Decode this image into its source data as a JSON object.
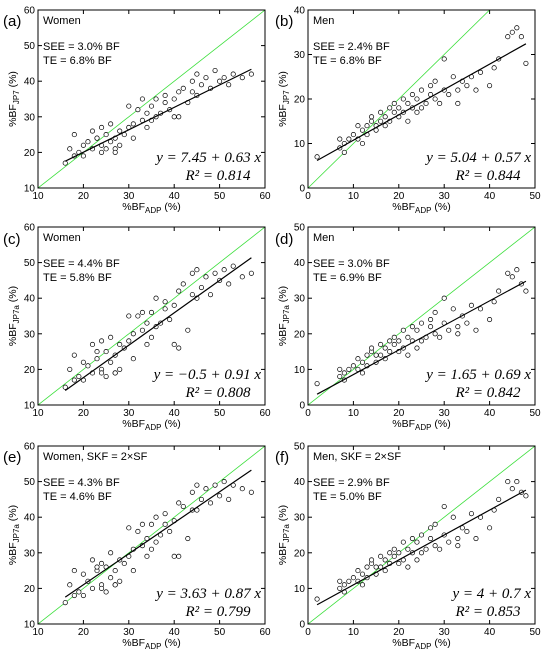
{
  "colors": {
    "identity_line": "#3adf3a",
    "fit_line": "#000000",
    "points": "#000000"
  },
  "chart_data": [
    {
      "panel": "(a)",
      "title": "Women",
      "type": "scatter",
      "xlabel_main": "%BF",
      "xlabel_sub": "ADP",
      "xlabel_unit": " (%)",
      "ylabel_main": "%BF",
      "ylabel_sub": "JP7",
      "ylabel_unit": " (%)",
      "xlim": [
        10,
        60
      ],
      "ylim": [
        10,
        60
      ],
      "xticks": [
        "10",
        "20",
        "30",
        "40",
        "50",
        "60"
      ],
      "yticks": [
        "10",
        "20",
        "30",
        "40",
        "50",
        "60"
      ],
      "stat_see": "SEE = 3.0% BF",
      "stat_te": "TE = 6.8% BF",
      "eq_text": "y = 7.45 + 0.63 x",
      "r2_text": "R² = 0.814",
      "intercept": 7.45,
      "slope": 0.63,
      "x": [
        16,
        17,
        18,
        18,
        19,
        20,
        21,
        22,
        22,
        23,
        24,
        24,
        25,
        25,
        26,
        26,
        27,
        27,
        28,
        28,
        29,
        30,
        31,
        31,
        32,
        33,
        34,
        34,
        35,
        35,
        36,
        36,
        37,
        38,
        38,
        39,
        40,
        41,
        41,
        42,
        43,
        44,
        45,
        45,
        46,
        47,
        48,
        49,
        50,
        51,
        52,
        53,
        55,
        57,
        20,
        24,
        30,
        33,
        40,
        44,
        27,
        23
      ],
      "y": [
        17,
        21,
        19,
        25,
        20,
        22,
        23,
        21,
        26,
        24,
        22,
        27,
        21,
        25,
        23,
        28,
        24,
        21,
        26,
        22,
        25,
        27,
        28,
        24,
        32,
        29,
        27,
        31,
        33,
        29,
        30,
        35,
        31,
        34,
        36,
        32,
        35,
        37,
        30,
        38,
        34,
        40,
        36,
        42,
        39,
        41,
        38,
        43,
        40,
        41,
        39,
        42,
        41,
        42,
        19,
        20,
        33,
        35,
        30,
        37,
        20,
        24
      ]
    },
    {
      "panel": "(b)",
      "title": "Men",
      "type": "scatter",
      "xlabel_main": "%BF",
      "xlabel_sub": "ADP",
      "xlabel_unit": " (%)",
      "ylabel_main": "%BF",
      "ylabel_sub": "JP7",
      "ylabel_unit": " (%)",
      "xlim": [
        0,
        50
      ],
      "ylim": [
        0,
        40
      ],
      "xticks": [
        "0",
        "10",
        "20",
        "30",
        "40",
        "50"
      ],
      "yticks": [
        "0",
        "10",
        "20",
        "30",
        "40"
      ],
      "stat_see": "SEE = 2.4% BF",
      "stat_te": "TE = 6.8% BF",
      "eq_text": "y = 5.04 + 0.57 x",
      "r2_text": "R² = 0.844",
      "intercept": 5.04,
      "slope": 0.57,
      "x": [
        2,
        7,
        7,
        8,
        8,
        9,
        10,
        11,
        11,
        12,
        12,
        13,
        13,
        14,
        14,
        15,
        15,
        16,
        16,
        17,
        17,
        18,
        18,
        19,
        19,
        20,
        20,
        21,
        21,
        22,
        22,
        23,
        23,
        24,
        24,
        25,
        25,
        26,
        27,
        27,
        28,
        28,
        29,
        30,
        31,
        32,
        33,
        34,
        35,
        36,
        37,
        38,
        40,
        41,
        42,
        44,
        45,
        46,
        47,
        48,
        30,
        33
      ],
      "y": [
        7,
        9,
        11,
        10,
        8,
        11,
        12,
        11,
        14,
        13,
        10,
        14,
        12,
        15,
        16,
        13,
        14,
        17,
        15,
        16,
        14,
        18,
        15,
        17,
        19,
        16,
        18,
        17,
        20,
        15,
        19,
        18,
        21,
        17,
        20,
        18,
        22,
        19,
        21,
        23,
        20,
        24,
        19,
        22,
        21,
        25,
        22,
        24,
        23,
        25,
        22,
        26,
        23,
        27,
        29,
        34,
        35,
        36,
        34,
        28,
        29,
        19
      ]
    },
    {
      "panel": "(c)",
      "title": "Women",
      "type": "scatter",
      "xlabel_main": "%BF",
      "xlabel_sub": "ADP",
      "xlabel_unit": " (%)",
      "ylabel_main": "%BF",
      "ylabel_sub": "JP7a",
      "ylabel_unit": " (%)",
      "xlim": [
        10,
        60
      ],
      "ylim": [
        10,
        60
      ],
      "xticks": [
        "10",
        "20",
        "30",
        "40",
        "50",
        "60"
      ],
      "yticks": [
        "10",
        "20",
        "30",
        "40",
        "50",
        "60"
      ],
      "stat_see": "SEE = 4.4% BF",
      "stat_te": "TE = 5.8% BF",
      "eq_text": "y = −0.5 + 0.91 x",
      "r2_text": "R² = 0.808",
      "intercept": -0.5,
      "slope": 0.91,
      "x": [
        16,
        17,
        18,
        18,
        19,
        20,
        21,
        22,
        22,
        23,
        24,
        24,
        25,
        25,
        26,
        26,
        27,
        27,
        28,
        28,
        29,
        30,
        31,
        31,
        32,
        33,
        34,
        34,
        35,
        35,
        36,
        36,
        37,
        38,
        38,
        39,
        40,
        41,
        41,
        42,
        43,
        44,
        45,
        45,
        46,
        47,
        48,
        49,
        50,
        51,
        52,
        53,
        55,
        57,
        20,
        24,
        30,
        33,
        40,
        44,
        27,
        23
      ],
      "y": [
        15,
        20,
        17,
        24,
        18,
        22,
        21,
        19,
        27,
        23,
        20,
        28,
        18,
        25,
        22,
        29,
        24,
        19,
        27,
        20,
        26,
        28,
        30,
        23,
        35,
        31,
        27,
        33,
        36,
        29,
        32,
        40,
        33,
        37,
        39,
        34,
        38,
        42,
        26,
        44,
        31,
        47,
        40,
        48,
        43,
        46,
        41,
        47,
        45,
        48,
        44,
        49,
        46,
        47,
        17,
        19,
        35,
        36,
        27,
        41,
        19,
        25
      ]
    },
    {
      "panel": "(d)",
      "title": "Men",
      "type": "scatter",
      "xlabel_main": "%BF",
      "xlabel_sub": "ADP",
      "xlabel_unit": " (%)",
      "ylabel_main": "%BF",
      "ylabel_sub": "JP7a",
      "ylabel_unit": " (%)",
      "xlim": [
        0,
        50
      ],
      "ylim": [
        0,
        50
      ],
      "xticks": [
        "0",
        "10",
        "20",
        "30",
        "40",
        "50"
      ],
      "yticks": [
        "0",
        "10",
        "20",
        "30",
        "40",
        "50"
      ],
      "stat_see": "SEE = 3.0% BF",
      "stat_te": "TE = 6.9% BF",
      "eq_text": "y = 1.65 + 0.69 x",
      "r2_text": "R² = 0.842",
      "intercept": 1.65,
      "slope": 0.69,
      "x": [
        2,
        7,
        7,
        8,
        8,
        9,
        10,
        11,
        11,
        12,
        12,
        13,
        13,
        14,
        14,
        15,
        15,
        16,
        16,
        17,
        17,
        18,
        18,
        19,
        19,
        20,
        20,
        21,
        21,
        22,
        22,
        23,
        23,
        24,
        24,
        25,
        25,
        26,
        27,
        27,
        28,
        28,
        29,
        30,
        31,
        32,
        33,
        34,
        35,
        36,
        37,
        38,
        40,
        41,
        42,
        44,
        45,
        46,
        47,
        48,
        30,
        33
      ],
      "y": [
        6,
        8,
        10,
        9,
        7,
        10,
        11,
        10,
        13,
        12,
        9,
        14,
        11,
        15,
        16,
        12,
        14,
        17,
        14,
        16,
        13,
        18,
        15,
        17,
        19,
        15,
        18,
        16,
        21,
        14,
        19,
        18,
        22,
        16,
        21,
        18,
        23,
        19,
        22,
        24,
        20,
        26,
        19,
        23,
        21,
        27,
        22,
        25,
        23,
        28,
        21,
        27,
        24,
        29,
        32,
        37,
        36,
        38,
        34,
        32,
        30,
        20
      ]
    },
    {
      "panel": "(e)",
      "title": "Women,  SKF = 2×SF",
      "type": "scatter",
      "xlabel_main": "%BF",
      "xlabel_sub": "ADP",
      "xlabel_unit": " (%)",
      "ylabel_main": "%BF",
      "ylabel_sub": "JP7a",
      "ylabel_unit": " (%)",
      "xlim": [
        10,
        60
      ],
      "ylim": [
        10,
        60
      ],
      "xticks": [
        "10",
        "20",
        "30",
        "40",
        "50",
        "60"
      ],
      "yticks": [
        "10",
        "20",
        "30",
        "40",
        "50",
        "60"
      ],
      "stat_see": "SEE = 4.3% BF",
      "stat_te": "TE = 4.6% BF",
      "eq_text": "y = 3.63 + 0.87 x",
      "r2_text": "R² = 0.799",
      "intercept": 3.63,
      "slope": 0.87,
      "x": [
        16,
        17,
        18,
        18,
        19,
        20,
        21,
        22,
        22,
        23,
        24,
        24,
        25,
        25,
        26,
        26,
        27,
        27,
        28,
        28,
        29,
        30,
        31,
        31,
        32,
        33,
        34,
        34,
        35,
        35,
        36,
        36,
        37,
        38,
        38,
        39,
        40,
        41,
        41,
        42,
        43,
        44,
        45,
        45,
        46,
        47,
        48,
        49,
        50,
        51,
        52,
        53,
        55,
        57,
        20,
        24,
        30,
        33,
        40,
        44,
        27,
        23
      ],
      "y": [
        16,
        21,
        18,
        25,
        19,
        24,
        22,
        20,
        28,
        25,
        21,
        27,
        19,
        26,
        23,
        30,
        25,
        21,
        28,
        22,
        27,
        29,
        31,
        25,
        36,
        32,
        29,
        34,
        38,
        31,
        33,
        40,
        35,
        38,
        41,
        36,
        39,
        44,
        29,
        43,
        34,
        47,
        42,
        49,
        45,
        48,
        44,
        49,
        46,
        50,
        45,
        49,
        48,
        47,
        18,
        20,
        37,
        38,
        29,
        42,
        21,
        26
      ]
    },
    {
      "panel": "(f)",
      "title": "Men,  SKF = 2×SF",
      "type": "scatter",
      "xlabel_main": "%BF",
      "xlabel_sub": "ADP",
      "xlabel_unit": " (%)",
      "ylabel_main": "%BF",
      "ylabel_sub": "JP7a",
      "ylabel_unit": " (%)",
      "xlim": [
        0,
        50
      ],
      "ylim": [
        0,
        50
      ],
      "xticks": [
        "0",
        "10",
        "20",
        "30",
        "40",
        "50"
      ],
      "yticks": [
        "0",
        "10",
        "20",
        "30",
        "40",
        "50"
      ],
      "stat_see": "SEE = 2.9% BF",
      "stat_te": "TE = 5.0% BF",
      "eq_text": "y = 4 + 0.7 x",
      "r2_text": "R² = 0.853",
      "intercept": 4.0,
      "slope": 0.7,
      "x": [
        2,
        7,
        7,
        8,
        8,
        9,
        10,
        11,
        11,
        12,
        12,
        13,
        13,
        14,
        14,
        15,
        15,
        16,
        16,
        17,
        17,
        18,
        18,
        19,
        19,
        20,
        20,
        21,
        21,
        22,
        22,
        23,
        23,
        24,
        24,
        25,
        25,
        26,
        27,
        27,
        28,
        28,
        29,
        30,
        31,
        32,
        33,
        34,
        35,
        36,
        37,
        38,
        40,
        41,
        42,
        44,
        45,
        46,
        47,
        48,
        30,
        33
      ],
      "y": [
        7,
        10,
        12,
        11,
        9,
        12,
        13,
        12,
        15,
        14,
        11,
        16,
        13,
        17,
        18,
        14,
        16,
        19,
        16,
        18,
        15,
        20,
        17,
        19,
        21,
        17,
        20,
        18,
        23,
        16,
        21,
        20,
        24,
        18,
        23,
        20,
        25,
        21,
        24,
        27,
        22,
        28,
        21,
        25,
        23,
        30,
        24,
        27,
        26,
        31,
        24,
        30,
        27,
        32,
        35,
        40,
        38,
        40,
        37,
        36,
        33,
        22
      ]
    }
  ]
}
